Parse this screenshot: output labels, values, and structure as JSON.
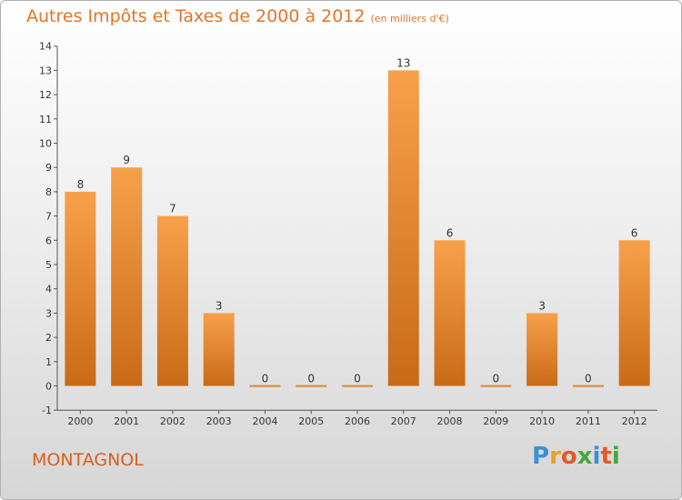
{
  "header": {
    "title": "Autres Impôts et Taxes de 2000 à 2012",
    "unit": "(en milliers d'€)"
  },
  "footer": {
    "place": "MONTAGNOL",
    "logo": "Proxiti"
  },
  "colors": {
    "bar_light": "#f7a04a",
    "bar_dark": "#c96a16",
    "accent_text": "#e0752a"
  },
  "chart_data": {
    "type": "bar",
    "categories": [
      "2000",
      "2001",
      "2002",
      "2003",
      "2004",
      "2005",
      "2006",
      "2007",
      "2008",
      "2009",
      "2010",
      "2011",
      "2012"
    ],
    "values": [
      8,
      9,
      7,
      3,
      0,
      0,
      0,
      13,
      6,
      0,
      3,
      0,
      6
    ],
    "data_labels": [
      "8",
      "9",
      "7",
      "3",
      "0",
      "0",
      "0",
      "13",
      "6",
      "0",
      "3",
      "0",
      "6"
    ],
    "y_ticks": [
      "-1",
      "0",
      "1",
      "2",
      "3",
      "4",
      "5",
      "6",
      "7",
      "8",
      "9",
      "10",
      "11",
      "12",
      "13",
      "14"
    ],
    "ylim": [
      -1,
      14
    ],
    "grid": false,
    "legend": "none"
  }
}
